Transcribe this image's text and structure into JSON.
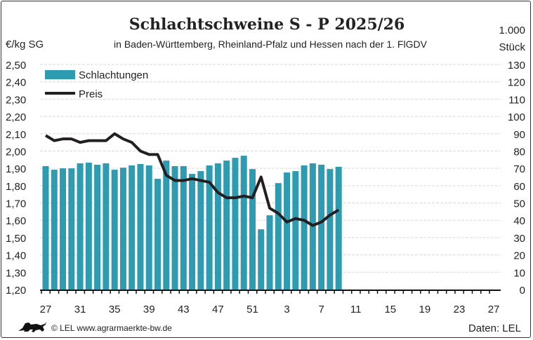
{
  "chart_data": {
    "type": "bar+line",
    "title": "Schlachtschweine S - P 2025/26",
    "subtitle": "in Baden-Württemberg, Rheinland-Pfalz und Hessen nach der 1. FlGDV",
    "ylabel_left": "€/kg SG",
    "ylabel_right_line1": "1.000",
    "ylabel_right_line2": "Stück",
    "ylim_left": [
      1.2,
      2.5
    ],
    "ylim_right": [
      0,
      130
    ],
    "yticks_left": [
      "1,20",
      "1,30",
      "1,40",
      "1,50",
      "1,60",
      "1,70",
      "1,80",
      "1,90",
      "2,00",
      "2,10",
      "2,20",
      "2,30",
      "2,40",
      "2,50"
    ],
    "yticks_right": [
      "0",
      "10",
      "20",
      "30",
      "40",
      "50",
      "60",
      "70",
      "80",
      "90",
      "100",
      "110",
      "120",
      "130"
    ],
    "xtick_labels": [
      "27",
      "31",
      "35",
      "39",
      "43",
      "47",
      "51",
      "3",
      "7",
      "11",
      "15",
      "19",
      "23",
      "27"
    ],
    "weeks": [
      27,
      28,
      29,
      30,
      31,
      32,
      33,
      34,
      35,
      36,
      37,
      38,
      39,
      40,
      41,
      42,
      43,
      44,
      45,
      46,
      47,
      48,
      49,
      50,
      51,
      52,
      1,
      2,
      3,
      4,
      5,
      6,
      7,
      8,
      9
    ],
    "grid": true,
    "legend_placement": "top-left",
    "series": [
      {
        "name": "Schlachtungen",
        "type": "bar",
        "axis": "right",
        "color": "#2e9bb0",
        "values": [
          71.3,
          69.2,
          70,
          70,
          72.9,
          73.3,
          72.1,
          72.9,
          69.2,
          70.4,
          71.7,
          72.5,
          71.7,
          64,
          74.5,
          71.3,
          71.3,
          66.8,
          68.4,
          71.7,
          72.9,
          74.5,
          76.1,
          77.3,
          69.6,
          34.8,
          42.9,
          61.5,
          67.6,
          68.4,
          71.7,
          72.9,
          72.1,
          69.6,
          70.9
        ]
      },
      {
        "name": "Preis",
        "type": "line",
        "axis": "left",
        "color": "#231f20",
        "values": [
          2.09,
          2.06,
          2.07,
          2.07,
          2.05,
          2.06,
          2.06,
          2.06,
          2.1,
          2.07,
          2.05,
          2.0,
          1.98,
          1.98,
          1.86,
          1.83,
          1.83,
          1.84,
          1.83,
          1.82,
          1.76,
          1.73,
          1.73,
          1.74,
          1.73,
          1.85,
          1.67,
          1.64,
          1.59,
          1.61,
          1.6,
          1.57,
          1.59,
          1.63,
          1.66
        ]
      }
    ]
  },
  "footer": {
    "copyright": "© LEL www.agrarmaerkte-bw.de",
    "source": "Daten: LEL",
    "logo": "lion-logo"
  }
}
